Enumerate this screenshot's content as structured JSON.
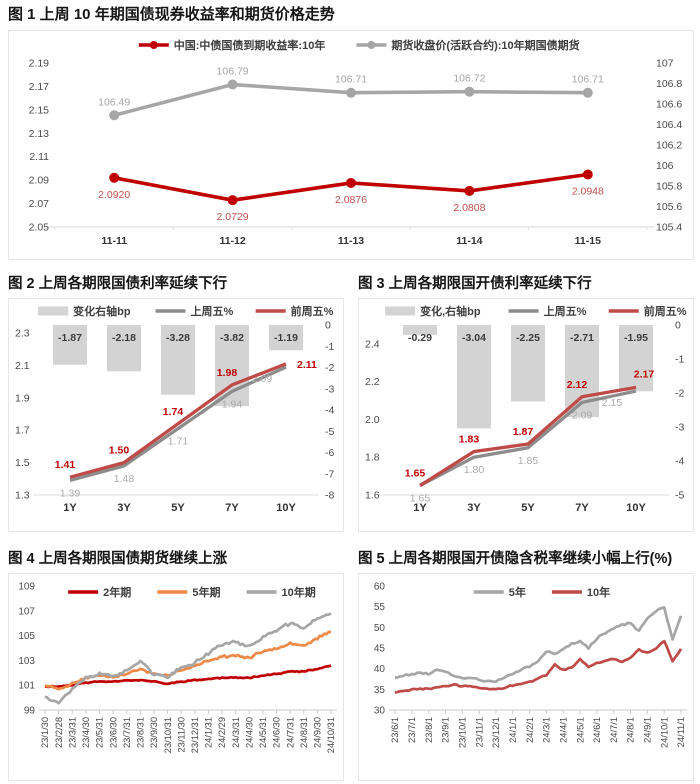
{
  "page": {
    "background": "#FFFFFF"
  },
  "colors": {
    "red": "#C00000",
    "soft_red": "#BE4B48",
    "red_value_label": "#C0504D",
    "gray": "#A6A6A6",
    "gray_line_dark": "#8C8C8C",
    "orange": "#ED8A47",
    "bar_fill": "#D3D3D3",
    "axis_text": "#4A4A4A",
    "panel_border": "#E6E6E6"
  },
  "chart_data": [
    {
      "id": "fig1",
      "type": "line",
      "subtype": "dual-axis-line",
      "title": "图 1 上周 10 年期国债现券收益率和期货价格走势",
      "legend_position": "top-center",
      "categories": [
        "11-11",
        "11-12",
        "11-13",
        "11-14",
        "11-15"
      ],
      "series": [
        {
          "name": "中国:中债国债到期收益率:10年",
          "axis": "left",
          "color": "#C00000",
          "values": [
            2.092,
            2.0729,
            2.0876,
            2.0808,
            2.0948
          ],
          "labels": [
            "2.0920",
            "2.0729",
            "2.0876",
            "2.0808",
            "2.0948"
          ],
          "label_color": "#C0504D",
          "label_side": "below"
        },
        {
          "name": "期货收盘价(活跃合约):10年期国债期货",
          "axis": "right",
          "color": "#A6A6A6",
          "values": [
            106.49,
            106.79,
            106.71,
            106.72,
            106.71
          ],
          "labels": [
            "106.49",
            "106.79",
            "106.71",
            "106.72",
            "106.71"
          ],
          "label_color": "#A6A6A6",
          "label_side": "above"
        }
      ],
      "left_axis": {
        "min": 2.05,
        "max": 2.19,
        "ticks": [
          "2.19",
          "2.17",
          "2.15",
          "2.13",
          "2.11",
          "2.09",
          "2.07",
          "2.05"
        ]
      },
      "right_axis": {
        "min": 105.4,
        "max": 107,
        "ticks": [
          "107",
          "106.8",
          "106.6",
          "106.4",
          "106.2",
          "106",
          "105.8",
          "105.6",
          "105.4"
        ]
      }
    },
    {
      "id": "fig2",
      "type": "bar",
      "subtype": "bar-plus-lines",
      "title": "图 2 上周各期限国债利率延续下行",
      "legend_position": "top-center",
      "categories": [
        "1Y",
        "3Y",
        "5Y",
        "7Y",
        "10Y"
      ],
      "bars": {
        "name": "变化右轴bp",
        "axis": "right",
        "color": "#D3D3D3",
        "values": [
          -1.87,
          -2.18,
          -3.28,
          -3.82,
          -1.19
        ],
        "labels": [
          "-1.87",
          "-2.18",
          "-3.28",
          "-3.82",
          "-1.19"
        ]
      },
      "lines": [
        {
          "name": "上周五%",
          "axis": "left",
          "color": "#8C8C8C",
          "bold": false,
          "values": [
            1.39,
            1.48,
            1.71,
            1.94,
            2.09
          ],
          "labels": [
            "1.39",
            "1.48",
            "1.71",
            "1.94",
            "2.09"
          ],
          "label_color": "#ABABAB"
        },
        {
          "name": "前周五%",
          "axis": "left",
          "color": "#BE4B48",
          "bold": true,
          "values": [
            1.41,
            1.5,
            1.74,
            1.98,
            2.11
          ],
          "labels": [
            "1.41",
            "1.50",
            "1.74",
            "1.98",
            "2.11"
          ],
          "label_color": "#C00000"
        }
      ],
      "left_axis": {
        "min": 1.3,
        "max": 2.35,
        "ticks": [
          "2.3",
          "2.1",
          "1.9",
          "1.7",
          "1.5",
          "1.3"
        ]
      },
      "right_axis": {
        "min": -8,
        "max": 0,
        "ticks": [
          "0",
          "-1",
          "-2",
          "-3",
          "-4",
          "-5",
          "-6",
          "-7",
          "-8"
        ]
      },
      "last_red_label_right": true
    },
    {
      "id": "fig3",
      "type": "bar",
      "subtype": "bar-plus-lines",
      "title": "图 3 上周各期限国开债利率延续下行",
      "legend_position": "top-center",
      "categories": [
        "1Y",
        "3Y",
        "5Y",
        "7Y",
        "10Y"
      ],
      "bars": {
        "name": "变化,右轴bp",
        "axis": "right",
        "color": "#D3D3D3",
        "values": [
          -0.29,
          -3.04,
          -2.25,
          -2.71,
          -1.95
        ],
        "labels": [
          "-0.29",
          "-3.04",
          "-2.25",
          "-2.71",
          "-1.95"
        ]
      },
      "lines": [
        {
          "name": "上周五%",
          "axis": "left",
          "color": "#8C8C8C",
          "bold": false,
          "values": [
            1.65,
            1.8,
            1.85,
            2.09,
            2.15
          ],
          "labels": [
            "1.65",
            "1.80",
            "1.85",
            "2.09",
            "2.15"
          ],
          "label_color": "#ABABAB"
        },
        {
          "name": "前周五%",
          "axis": "left",
          "color": "#BE4B48",
          "bold": true,
          "values": [
            1.65,
            1.83,
            1.87,
            2.12,
            2.17
          ],
          "labels": [
            "1.65",
            "1.83",
            "1.87",
            "2.12",
            "2.17"
          ],
          "label_color": "#C00000"
        }
      ],
      "left_axis": {
        "min": 1.6,
        "max": 2.5,
        "ticks": [
          "2.4",
          "2.2",
          "2.0",
          "1.8",
          "1.6"
        ]
      },
      "right_axis": {
        "min": -5,
        "max": 0,
        "ticks": [
          "0",
          "-1",
          "-2",
          "-3",
          "-4",
          "-5"
        ]
      },
      "last_red_label_right": false
    },
    {
      "id": "fig4",
      "type": "line",
      "subtype": "multi-line-timeseries",
      "title": "图 4 上周各期限国债期货继续上涨",
      "legend_position": "top-center",
      "x_ticks": [
        "23/1/30",
        "23/2/28",
        "23/3/31",
        "23/4/30",
        "23/5/31",
        "23/6/30",
        "23/7/31",
        "23/8/31",
        "23/9/30",
        "23/10/31",
        "23/11/30",
        "23/12/31",
        "24/1/31",
        "24/2/29",
        "24/3/31",
        "24/4/30",
        "24/5/31",
        "24/6/30",
        "24/7/31",
        "24/8/31",
        "24/9/30",
        "24/10/31"
      ],
      "points_per_tick": 1,
      "series": [
        {
          "name": "2年期",
          "color": "#C00000",
          "values": [
            100.9,
            100.9,
            101.0,
            101.2,
            101.3,
            101.3,
            101.4,
            101.4,
            101.3,
            101.1,
            101.3,
            101.4,
            101.5,
            101.6,
            101.6,
            101.6,
            101.8,
            101.9,
            102.1,
            102.1,
            102.3,
            102.6
          ]
        },
        {
          "name": "5年期",
          "color": "#ED8A47",
          "values": [
            101.0,
            100.7,
            101.1,
            101.6,
            101.8,
            101.7,
            101.9,
            102.3,
            101.9,
            101.8,
            102.2,
            102.5,
            103.0,
            103.3,
            103.4,
            103.2,
            103.7,
            104.0,
            104.4,
            104.2,
            104.8,
            105.3
          ]
        },
        {
          "name": "10年期",
          "color": "#A6A6A6",
          "values": [
            100.1,
            99.6,
            100.7,
            101.6,
            101.9,
            101.8,
            102.1,
            103.0,
            101.9,
            101.6,
            102.4,
            102.8,
            103.6,
            104.3,
            104.5,
            104.1,
            104.9,
            105.4,
            106.0,
            105.6,
            106.4,
            106.8
          ]
        }
      ],
      "y_axis": {
        "min": 99,
        "max": 109,
        "ticks": [
          "109",
          "107",
          "105",
          "103",
          "101",
          "99"
        ]
      }
    },
    {
      "id": "fig5",
      "type": "line",
      "subtype": "multi-line-timeseries",
      "title": "图 5 上周各期限国开债隐含税率继续小幅上行(%)",
      "legend_position": "top-center",
      "x_ticks": [
        "23/6/1",
        "23/7/1",
        "23/8/1",
        "23/9/1",
        "23/10/1",
        "23/11/1",
        "23/12/1",
        "24/1/1",
        "24/2/1",
        "24/3/1",
        "24/4/1",
        "24/5/1",
        "24/6/1",
        "24/7/1",
        "24/8/1",
        "24/9/1",
        "24/10/1",
        "24/11/1"
      ],
      "points_per_tick": 2,
      "series": [
        {
          "name": "5年",
          "color": "#A6A6A6",
          "values": [
            37.8,
            38.4,
            38.6,
            39.0,
            38.8,
            39.7,
            39.3,
            38.1,
            37.9,
            37.7,
            37.3,
            36.9,
            36.8,
            37.7,
            38.8,
            39.9,
            40.6,
            41.8,
            44.3,
            43.5,
            44.7,
            45.9,
            46.8,
            44.9,
            47.3,
            48.7,
            49.9,
            50.7,
            50.9,
            49.1,
            52.2,
            53.8,
            55.0,
            47.0,
            52.8
          ]
        },
        {
          "name": "10年",
          "color": "#BE4B48",
          "values": [
            34.2,
            34.6,
            34.9,
            35.2,
            35.1,
            35.5,
            35.8,
            36.1,
            35.6,
            35.9,
            35.3,
            35.1,
            35.0,
            35.4,
            35.9,
            36.3,
            36.8,
            37.6,
            38.5,
            41.0,
            39.8,
            40.3,
            42.3,
            40.2,
            41.3,
            41.8,
            42.4,
            41.6,
            42.6,
            44.6,
            43.8,
            44.9,
            46.8,
            41.8,
            44.8
          ]
        }
      ],
      "y_axis": {
        "min": 30,
        "max": 60,
        "ticks": [
          "60",
          "55",
          "50",
          "45",
          "40",
          "35",
          "30"
        ]
      }
    }
  ]
}
